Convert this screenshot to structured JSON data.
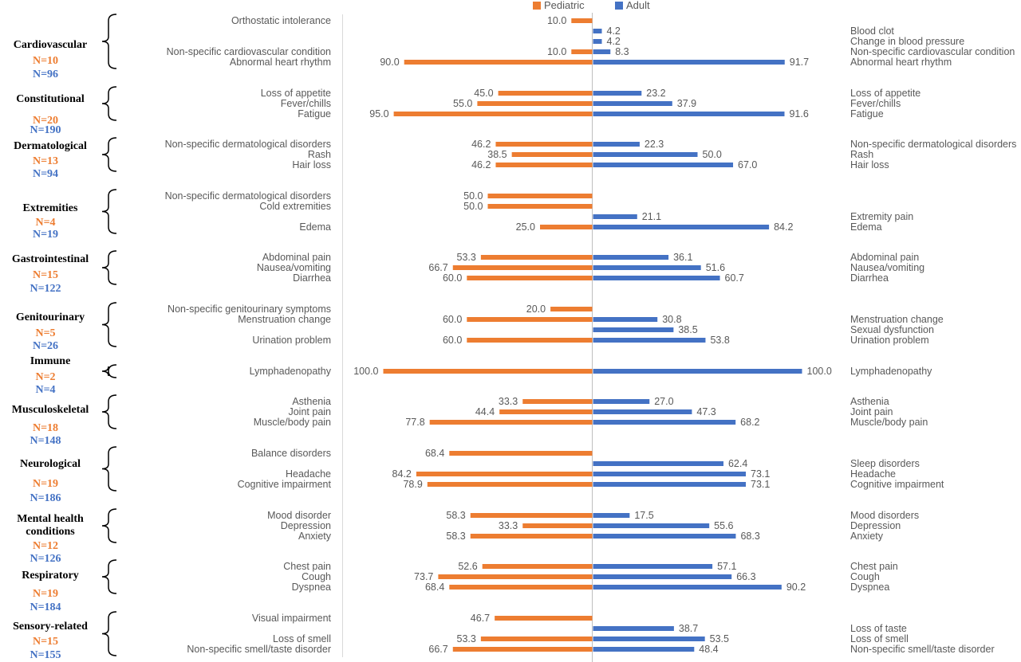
{
  "chart_data": {
    "type": "bar",
    "orientation": "horizontal-diverging",
    "legend": {
      "position": "top",
      "entries": [
        "Pediatric",
        "Adult"
      ]
    },
    "colors": {
      "pediatric": "#ED7D31",
      "adult": "#4472C4",
      "axis": "#BFBFBF",
      "text": "#595959"
    },
    "series": [
      {
        "name": "Pediatric",
        "color": "#ED7D31"
      },
      {
        "name": "Adult",
        "color": "#4472C4"
      }
    ],
    "groups": [
      {
        "name": "Cardiovascular",
        "n_ped": "N=10",
        "n_adult": "N=96",
        "rows": [
          {
            "ped_label": "Orthostatic intolerance",
            "ped": 10.0,
            "adult_label": "",
            "adult": null
          },
          {
            "ped_label": "",
            "ped": null,
            "adult_label": "Blood clot",
            "adult": 4.2
          },
          {
            "ped_label": "",
            "ped": null,
            "adult_label": "Change in blood pressure",
            "adult": 4.2
          },
          {
            "ped_label": "Non-specific cardiovascular condition",
            "ped": 10.0,
            "adult_label": "Non-specific cardiovascular condition",
            "adult": 8.3
          },
          {
            "ped_label": "Abnormal heart rhythm",
            "ped": 90.0,
            "adult_label": "Abnormal heart rhythm",
            "adult": 91.7
          }
        ]
      },
      {
        "name": "Constitutional",
        "n_ped": "N=20",
        "n_adult": "N=190",
        "rows": [
          {
            "ped_label": "Loss of appetite",
            "ped": 45.0,
            "adult_label": "Loss of appetite",
            "adult": 23.2
          },
          {
            "ped_label": "Fever/chills",
            "ped": 55.0,
            "adult_label": "Fever/chills",
            "adult": 37.9
          },
          {
            "ped_label": "Fatigue",
            "ped": 95.0,
            "adult_label": "Fatigue",
            "adult": 91.6
          }
        ]
      },
      {
        "name": "Dermatological",
        "n_ped": "N=13",
        "n_adult": "N=94",
        "rows": [
          {
            "ped_label": "Non-specific dermatological disorders",
            "ped": 46.2,
            "adult_label": "Non-specific dermatological disorders",
            "adult": 22.3
          },
          {
            "ped_label": "Rash",
            "ped": 38.5,
            "adult_label": "Rash",
            "adult": 50.0
          },
          {
            "ped_label": "Hair loss",
            "ped": 46.2,
            "adult_label": "Hair loss",
            "adult": 67.0
          }
        ]
      },
      {
        "name": "Extremities",
        "n_ped": "N=4",
        "n_adult": "N=19",
        "rows": [
          {
            "ped_label": "Non-specific dermatological disorders",
            "ped": 50.0,
            "adult_label": "",
            "adult": null
          },
          {
            "ped_label": "Cold extremities",
            "ped": 50.0,
            "adult_label": "",
            "adult": null
          },
          {
            "ped_label": "",
            "ped": null,
            "adult_label": "Extremity pain",
            "adult": 21.1
          },
          {
            "ped_label": "Edema",
            "ped": 25.0,
            "adult_label": "Edema",
            "adult": 84.2
          }
        ]
      },
      {
        "name": "Gastrointestinal",
        "n_ped": "N=15",
        "n_adult": "N=122",
        "rows": [
          {
            "ped_label": "Abdominal pain",
            "ped": 53.3,
            "adult_label": "Abdominal pain",
            "adult": 36.1
          },
          {
            "ped_label": "Nausea/vomiting",
            "ped": 66.7,
            "adult_label": "Nausea/vomiting",
            "adult": 51.6
          },
          {
            "ped_label": "Diarrhea",
            "ped": 60.0,
            "adult_label": "Diarrhea",
            "adult": 60.7
          }
        ]
      },
      {
        "name": "Genitourinary",
        "n_ped": "N=5",
        "n_adult": "N=26",
        "rows": [
          {
            "ped_label": "Non-specific genitourinary symptoms",
            "ped": 20.0,
            "adult_label": "",
            "adult": null
          },
          {
            "ped_label": "Menstruation change",
            "ped": 60.0,
            "adult_label": "Menstruation change",
            "adult": 30.8
          },
          {
            "ped_label": "",
            "ped": null,
            "adult_label": "Sexual dysfunction",
            "adult": 38.5
          },
          {
            "ped_label": "Urination problem",
            "ped": 60.0,
            "adult_label": "Urination problem",
            "adult": 53.8
          }
        ]
      },
      {
        "name": "Immune",
        "n_ped": "N=2",
        "n_adult": "N=4",
        "rows": [
          {
            "ped_label": "Lymphadenopathy",
            "ped": 100.0,
            "adult_label": "Lymphadenopathy",
            "adult": 100.0
          }
        ]
      },
      {
        "name": "Musculoskeletal",
        "n_ped": "N=18",
        "n_adult": "N=148",
        "rows": [
          {
            "ped_label": "Asthenia",
            "ped": 33.3,
            "adult_label": "Asthenia",
            "adult": 27.0
          },
          {
            "ped_label": "Joint pain",
            "ped": 44.4,
            "adult_label": "Joint pain",
            "adult": 47.3
          },
          {
            "ped_label": "Muscle/body pain",
            "ped": 77.8,
            "adult_label": "Muscle/body pain",
            "adult": 68.2
          }
        ]
      },
      {
        "name": "Neurological",
        "n_ped": "N=19",
        "n_adult": "N=186",
        "rows": [
          {
            "ped_label": "Balance disorders",
            "ped": 68.4,
            "adult_label": "",
            "adult": null
          },
          {
            "ped_label": "",
            "ped": null,
            "adult_label": "Sleep disorders",
            "adult": 62.4
          },
          {
            "ped_label": "Headache",
            "ped": 84.2,
            "adult_label": "Headache",
            "adult": 73.1
          },
          {
            "ped_label": "Cognitive impairment",
            "ped": 78.9,
            "adult_label": "Cognitive impairment",
            "adult": 73.1
          }
        ]
      },
      {
        "name": "Mental health conditions",
        "n_ped": "N=12",
        "n_adult": "N=126",
        "rows": [
          {
            "ped_label": "Mood disorder",
            "ped": 58.3,
            "adult_label": "Mood disorders",
            "adult": 17.5
          },
          {
            "ped_label": "Depression",
            "ped": 33.3,
            "adult_label": "Depression",
            "adult": 55.6
          },
          {
            "ped_label": "Anxiety",
            "ped": 58.3,
            "adult_label": "Anxiety",
            "adult": 68.3
          }
        ]
      },
      {
        "name": "Respiratory",
        "n_ped": "N=19",
        "n_adult": "N=184",
        "rows": [
          {
            "ped_label": "Chest pain",
            "ped": 52.6,
            "adult_label": "Chest pain",
            "adult": 57.1
          },
          {
            "ped_label": "Cough",
            "ped": 73.7,
            "adult_label": "Cough",
            "adult": 66.3
          },
          {
            "ped_label": "Dyspnea",
            "ped": 68.4,
            "adult_label": "Dyspnea",
            "adult": 90.2
          }
        ]
      },
      {
        "name": "Sensory-related",
        "n_ped": "N=15",
        "n_adult": "N=155",
        "rows": [
          {
            "ped_label": "Visual impairment",
            "ped": 46.7,
            "adult_label": "",
            "adult": null
          },
          {
            "ped_label": "",
            "ped": null,
            "adult_label": "Loss of taste",
            "adult": 38.7
          },
          {
            "ped_label": "Loss of smell",
            "ped": 53.3,
            "adult_label": "Loss of smell",
            "adult": 53.5
          },
          {
            "ped_label": "Non-specific smell/taste disorder",
            "ped": 66.7,
            "adult_label": "Non-specific smell/taste disorder",
            "adult": 48.4
          }
        ]
      }
    ]
  }
}
